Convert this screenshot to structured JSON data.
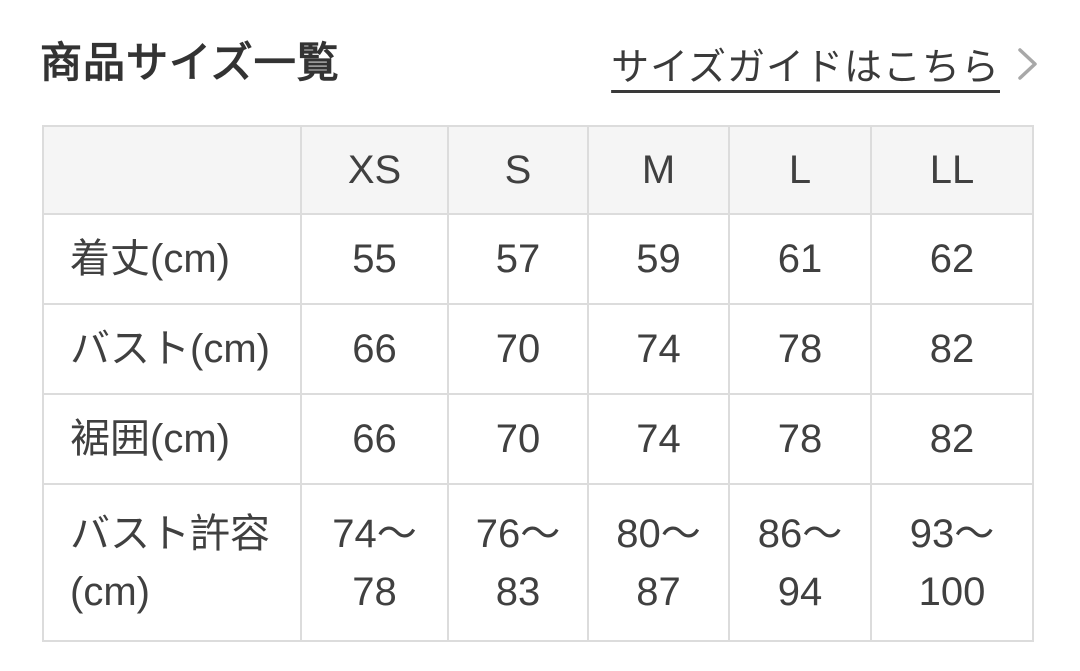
{
  "header": {
    "title": "商品サイズ一覧",
    "size_guide_label": "サイズガイドはこちら"
  },
  "size_table": {
    "column_headers": [
      "",
      "XS",
      "S",
      "M",
      "L",
      "LL"
    ],
    "rows": [
      {
        "label": "着丈(cm)",
        "values": [
          "55",
          "57",
          "59",
          "61",
          "62"
        ]
      },
      {
        "label": "バスト(cm)",
        "values": [
          "66",
          "70",
          "74",
          "78",
          "82"
        ]
      },
      {
        "label": "裾囲(cm)",
        "values": [
          "66",
          "70",
          "74",
          "78",
          "82"
        ]
      },
      {
        "label": "バスト許容(cm)",
        "values": [
          "74〜78",
          "76〜83",
          "80〜87",
          "86〜94",
          "93〜100"
        ]
      }
    ]
  },
  "colors": {
    "text": "#3a3a3a",
    "table_header_bg": "#f5f5f5",
    "border": "#dcdcdc",
    "chevron": "#a8a8a8"
  }
}
